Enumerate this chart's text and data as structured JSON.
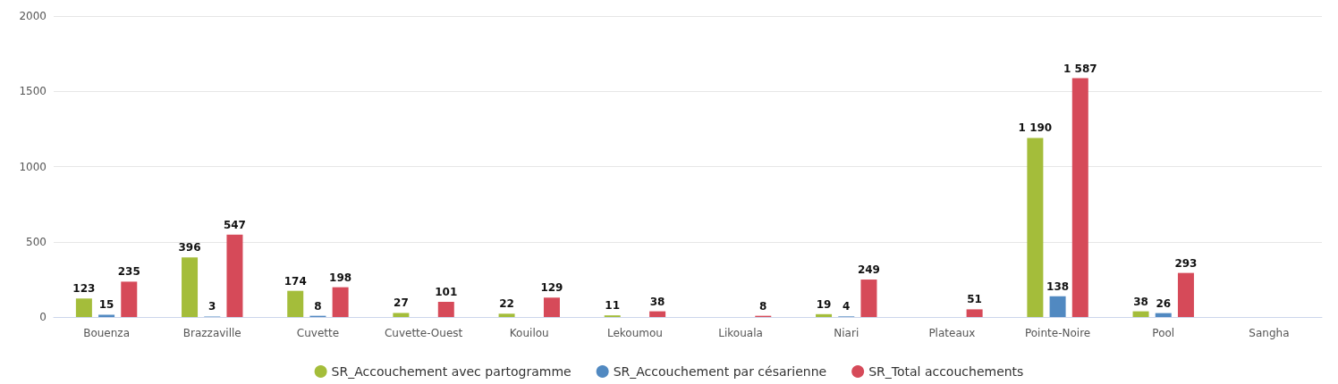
{
  "chart_data": {
    "type": "bar",
    "categories": [
      "Bouenza",
      "Brazzaville",
      "Cuvette",
      "Cuvette-Ouest",
      "Kouilou",
      "Lekoumou",
      "Likouala",
      "Niari",
      "Plateaux",
      "Pointe-Noire",
      "Pool",
      "Sangha"
    ],
    "series": [
      {
        "name": "SR_Accouchement avec partogramme",
        "color": "#a4bd3a",
        "values": [
          123,
          396,
          174,
          27,
          22,
          11,
          null,
          19,
          null,
          1190,
          38,
          null
        ],
        "value_labels": [
          "123",
          "396",
          "174",
          "27",
          "22",
          "11",
          null,
          "19",
          null,
          "1 190",
          "38",
          null
        ]
      },
      {
        "name": "SR_Accouchement par césarienne",
        "color": "#5189c1",
        "values": [
          15,
          3,
          8,
          null,
          null,
          null,
          null,
          4,
          null,
          138,
          26,
          null
        ],
        "value_labels": [
          "15",
          "3",
          "8",
          null,
          null,
          null,
          null,
          "4",
          null,
          "138",
          "26",
          null
        ]
      },
      {
        "name": "SR_Total accouchements",
        "color": "#d64a59",
        "values": [
          235,
          547,
          198,
          101,
          129,
          38,
          8,
          249,
          51,
          1587,
          293,
          null
        ],
        "value_labels": [
          "235",
          "547",
          "198",
          "101",
          "129",
          "38",
          "8",
          "249",
          "51",
          "1 587",
          "293",
          null
        ]
      }
    ],
    "ylim": [
      0,
      2000
    ],
    "yticks": [
      0,
      500,
      1000,
      1500,
      2000
    ],
    "grid": "y",
    "legend": "bottom"
  }
}
